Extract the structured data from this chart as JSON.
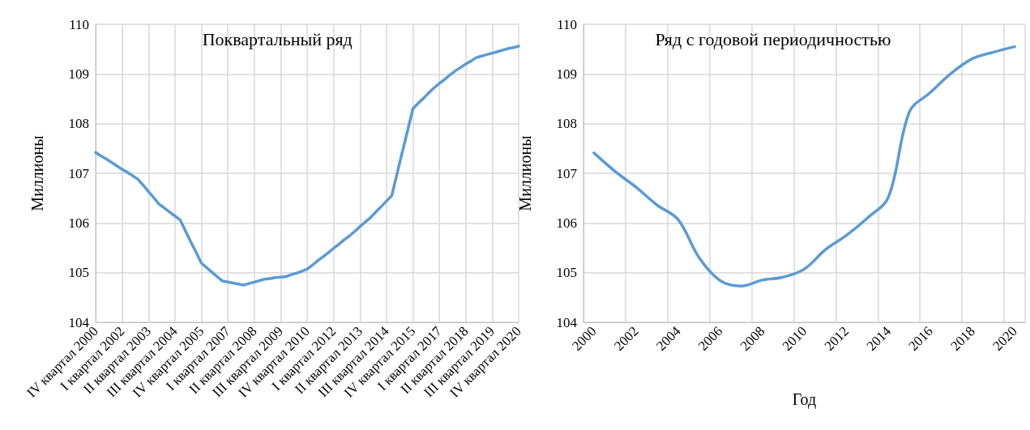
{
  "chart_data": [
    {
      "type": "line",
      "title": "Поквартальный ряд",
      "ylabel": "Миллионы",
      "categories": [
        "IV квартал 2000",
        null,
        null,
        null,
        null,
        "I квартал 2002",
        null,
        null,
        null,
        null,
        "II квартал 2003",
        null,
        null,
        null,
        null,
        "III квартал 2004",
        null,
        null,
        null,
        null,
        "IV квартал 2005",
        null,
        null,
        null,
        null,
        "I квартал 2007",
        null,
        null,
        null,
        null,
        "II квартал 2008",
        null,
        null,
        null,
        null,
        "III квартал 2009",
        null,
        null,
        null,
        null,
        "IV квартал 2010",
        null,
        null,
        null,
        null,
        "I квартал 2012",
        null,
        null,
        null,
        null,
        "II квартал 2013",
        null,
        null,
        null,
        null,
        "III квартал 2014",
        null,
        null,
        null,
        null,
        "IV квартал 2015",
        null,
        null,
        null,
        null,
        "I квартал 2017",
        null,
        null,
        null,
        null,
        "II квартал 2018",
        null,
        null,
        null,
        null,
        "III квартал 2019",
        null,
        null,
        null,
        null,
        "IV квартал 2020"
      ],
      "series": [
        {
          "color": "#5b9bd5",
          "values": [
            107.42,
            107.35,
            107.29,
            107.22,
            107.15,
            107.08,
            107.02,
            106.95,
            106.88,
            106.76,
            106.63,
            106.51,
            106.38,
            106.3,
            106.22,
            106.14,
            106.06,
            105.84,
            105.62,
            105.41,
            105.19,
            105.1,
            105.01,
            104.92,
            104.83,
            104.81,
            104.79,
            104.77,
            104.75,
            104.78,
            104.81,
            104.84,
            104.87,
            104.88,
            104.9,
            104.91,
            104.92,
            104.96,
            104.99,
            105.03,
            105.07,
            105.15,
            105.24,
            105.32,
            105.4,
            105.49,
            105.57,
            105.66,
            105.74,
            105.83,
            105.93,
            106.02,
            106.11,
            106.22,
            106.33,
            106.44,
            106.55,
            106.99,
            107.43,
            107.86,
            108.3,
            108.41,
            108.51,
            108.62,
            108.72,
            108.81,
            108.89,
            108.98,
            109.06,
            109.13,
            109.2,
            109.26,
            109.33,
            109.36,
            109.39,
            109.42,
            109.45,
            109.48,
            109.51,
            109.53,
            109.56
          ]
        }
      ],
      "ylim": [
        104,
        110
      ],
      "yticks": [
        104,
        105,
        106,
        107,
        108,
        109,
        110
      ],
      "grid": true,
      "marker": "none",
      "line_style": "solid"
    },
    {
      "type": "line",
      "title": "Ряд с годовой периодичностью",
      "xlabel": "Год",
      "ylabel": "Миллионы",
      "categories": [
        "2000",
        null,
        "2002",
        null,
        "2004",
        null,
        "2006",
        null,
        "2008",
        null,
        "2010",
        null,
        "2012",
        null,
        "2014",
        null,
        "2016",
        null,
        "2018",
        null,
        "2020"
      ],
      "series": [
        {
          "color": "#5b9bd5",
          "values": [
            107.41,
            107.04,
            106.72,
            106.36,
            106.07,
            105.3,
            104.84,
            104.73,
            104.85,
            104.91,
            105.07,
            105.46,
            105.75,
            106.1,
            106.52,
            108.24,
            108.63,
            109.02,
            109.31,
            109.44,
            109.55
          ]
        }
      ],
      "ylim": [
        104,
        110
      ],
      "yticks": [
        104,
        105,
        106,
        107,
        108,
        109,
        110
      ],
      "grid": true,
      "marker": "none",
      "line_style": "solid"
    }
  ]
}
